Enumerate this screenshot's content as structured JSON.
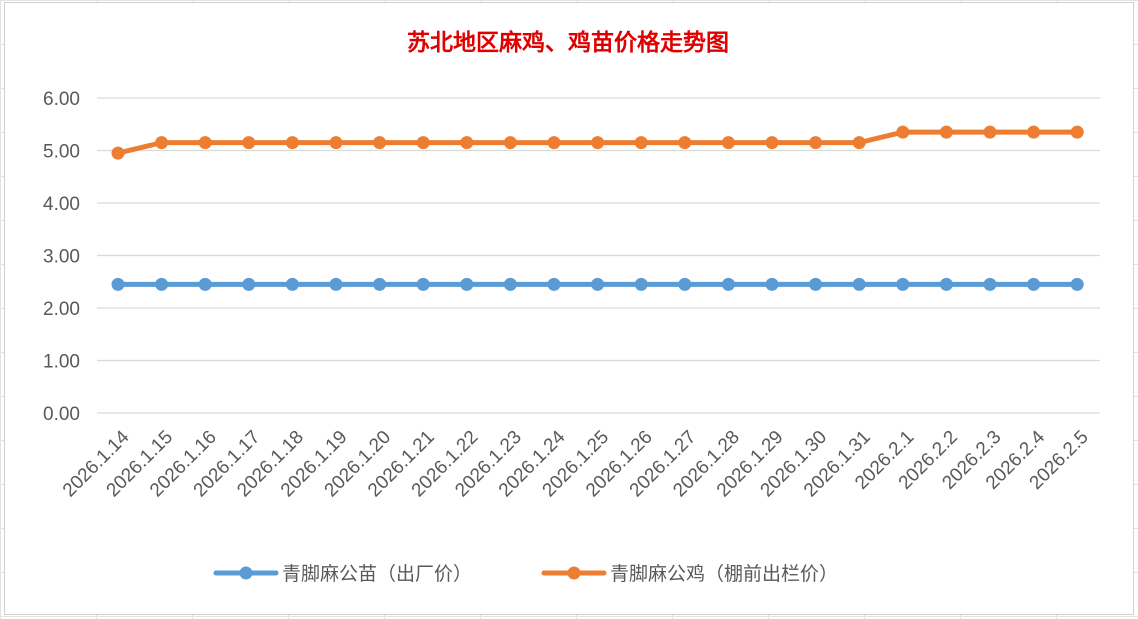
{
  "chart_data": {
    "type": "line",
    "title": "苏北地区麻鸡、鸡苗价格走势图",
    "xlabel": "",
    "ylabel": "",
    "ylim": [
      0,
      6
    ],
    "yticks": [
      "0.00",
      "1.00",
      "2.00",
      "3.00",
      "4.00",
      "5.00",
      "6.00"
    ],
    "grid": true,
    "legend_position": "bottom",
    "categories": [
      "2026.1.14",
      "2026.1.15",
      "2026.1.16",
      "2026.1.17",
      "2026.1.18",
      "2026.1.19",
      "2026.1.20",
      "2026.1.21",
      "2026.1.22",
      "2026.1.23",
      "2026.1.24",
      "2026.1.25",
      "2026.1.26",
      "2026.1.27",
      "2026.1.28",
      "2026.1.29",
      "2026.1.30",
      "2026.1.31",
      "2026.2.1",
      "2026.2.2",
      "2026.2.3",
      "2026.2.4",
      "2026.2.5"
    ],
    "series": [
      {
        "name": "青脚麻公苗（出厂价）",
        "color": "#5b9bd5",
        "values": [
          2.45,
          2.45,
          2.45,
          2.45,
          2.45,
          2.45,
          2.45,
          2.45,
          2.45,
          2.45,
          2.45,
          2.45,
          2.45,
          2.45,
          2.45,
          2.45,
          2.45,
          2.45,
          2.45,
          2.45,
          2.45,
          2.45,
          2.45
        ]
      },
      {
        "name": "青脚麻公鸡（棚前出栏价）",
        "color": "#ed7d31",
        "values": [
          4.95,
          5.15,
          5.15,
          5.15,
          5.15,
          5.15,
          5.15,
          5.15,
          5.15,
          5.15,
          5.15,
          5.15,
          5.15,
          5.15,
          5.15,
          5.15,
          5.15,
          5.15,
          5.35,
          5.35,
          5.35,
          5.35,
          5.35
        ]
      }
    ]
  }
}
